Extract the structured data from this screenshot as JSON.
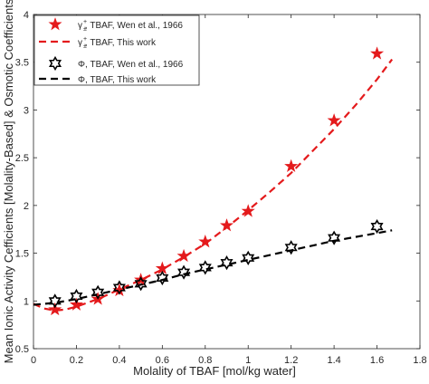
{
  "chart_data": {
    "type": "scatter",
    "xlabel": "Molality of TBAF [mol/kg water]",
    "ylabel": "Mean Ionic Activity Cefficients [Molality-Based] & Osmotic Coefficients",
    "xlim": [
      0,
      1.8
    ],
    "ylim": [
      0.5,
      4
    ],
    "xticks": [
      0,
      0.2,
      0.4,
      0.6,
      0.8,
      1,
      1.2,
      1.4,
      1.6,
      1.8
    ],
    "xtick_labels": [
      "0",
      "0.2",
      "0.4",
      "0.6",
      "0.8",
      "1",
      "1.2",
      "1.4",
      "1.6",
      "1.8"
    ],
    "yticks": [
      0.5,
      1,
      1.5,
      2,
      2.5,
      3,
      3.5,
      4
    ],
    "ytick_labels": [
      "0.5",
      "1",
      "1.5",
      "2",
      "2.5",
      "3",
      "3.5",
      "4"
    ],
    "grid": false,
    "legend_position": "top-left",
    "series": [
      {
        "name": "γ±+, TBAF, Wen et al., 1966",
        "legend_text": "γ  , TBAF, Wen et al., 1966",
        "kind": "marker",
        "marker": "filled-star",
        "color": "#e41a1c",
        "x": [
          0.1,
          0.2,
          0.3,
          0.4,
          0.5,
          0.6,
          0.7,
          0.8,
          0.9,
          1.0,
          1.2,
          1.4,
          1.6
        ],
        "y": [
          0.91,
          0.96,
          1.02,
          1.11,
          1.22,
          1.34,
          1.47,
          1.62,
          1.79,
          1.94,
          2.41,
          2.89,
          3.59
        ]
      },
      {
        "name": "γ±+, TBAF, This work",
        "legend_text": "γ  , TBAF, This work",
        "kind": "line",
        "dash": "dashed",
        "color": "#e41a1c",
        "x": [
          0,
          0.05,
          0.1,
          0.15,
          0.2,
          0.3,
          0.4,
          0.5,
          0.6,
          0.7,
          0.8,
          0.9,
          1.0,
          1.1,
          1.2,
          1.3,
          1.4,
          1.5,
          1.6,
          1.67
        ],
        "y": [
          0.97,
          0.92,
          0.9,
          0.91,
          0.94,
          1.02,
          1.12,
          1.22,
          1.33,
          1.46,
          1.6,
          1.77,
          1.95,
          2.14,
          2.34,
          2.57,
          2.8,
          3.05,
          3.32,
          3.53
        ]
      },
      {
        "name": "Φ, TBAF, Wen et al., 1966",
        "legend_text": "Φ, TBAF, Wen et al., 1966",
        "kind": "marker",
        "marker": "hexagram",
        "color": "#000000",
        "x": [
          0.1,
          0.2,
          0.3,
          0.4,
          0.5,
          0.6,
          0.7,
          0.8,
          0.9,
          1.0,
          1.2,
          1.4,
          1.6
        ],
        "y": [
          1.0,
          1.05,
          1.09,
          1.14,
          1.18,
          1.24,
          1.3,
          1.35,
          1.4,
          1.45,
          1.56,
          1.66,
          1.78
        ]
      },
      {
        "name": "Φ, TBAF, This work",
        "legend_text": "Φ, TBAF, This work",
        "kind": "line",
        "dash": "dashed",
        "color": "#000000",
        "x": [
          0,
          0.1,
          0.2,
          0.3,
          0.4,
          0.5,
          0.6,
          0.7,
          0.8,
          0.9,
          1.0,
          1.1,
          1.2,
          1.3,
          1.4,
          1.5,
          1.6,
          1.67
        ],
        "y": [
          0.96,
          0.98,
          1.02,
          1.07,
          1.12,
          1.17,
          1.22,
          1.28,
          1.33,
          1.38,
          1.43,
          1.48,
          1.53,
          1.58,
          1.63,
          1.67,
          1.71,
          1.74
        ]
      }
    ]
  }
}
